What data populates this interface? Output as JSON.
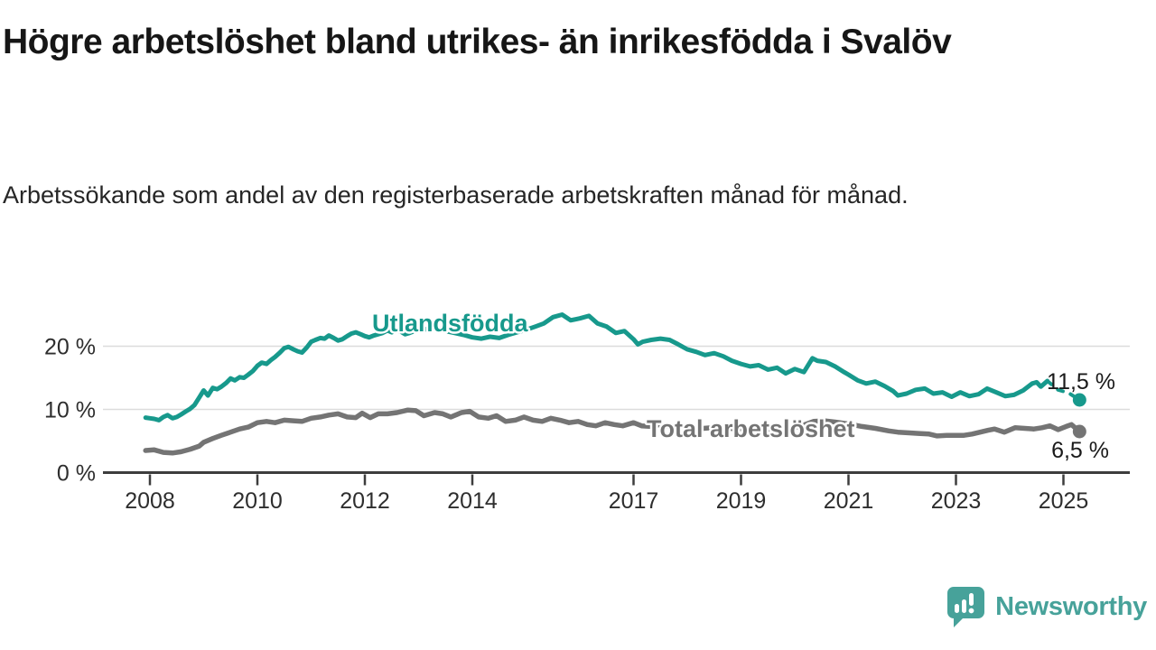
{
  "footer": {
    "brand": "Newsworthy"
  },
  "colors": {
    "teal": "#17998c",
    "gray": "#747474",
    "axis": "#3d3d3d",
    "grid": "#dcdcdc",
    "tick_text": "#2e2e2e",
    "value_text": "#1a1a1a",
    "logo": "#47a29a",
    "background": "#ffffff"
  },
  "chart_data": {
    "type": "line",
    "title": "Högre arbetslöshet bland utrikes- än inrikesfödda i Svalöv",
    "subtitle": "Arbetssökande som andel av den registerbaserade arbetskraften månad för månad.",
    "xlabel": "",
    "ylabel": "",
    "grid": "horizontal",
    "legend": "inline-labels",
    "xlim": [
      2007.1,
      2026.3
    ],
    "ylim": [
      0,
      28
    ],
    "x_ticks": [
      {
        "value": 2008,
        "label": "2008"
      },
      {
        "value": 2010,
        "label": "2010"
      },
      {
        "value": 2012,
        "label": "2012"
      },
      {
        "value": 2014,
        "label": "2014"
      },
      {
        "value": 2017,
        "label": "2017"
      },
      {
        "value": 2019,
        "label": "2019"
      },
      {
        "value": 2021,
        "label": "2021"
      },
      {
        "value": 2023,
        "label": "2023"
      },
      {
        "value": 2025,
        "label": "2025"
      }
    ],
    "y_ticks": [
      {
        "value": 0,
        "label": "0 %"
      },
      {
        "value": 10,
        "label": "10 %"
      },
      {
        "value": 20,
        "label": "20 %"
      }
    ],
    "series": [
      {
        "name": "Utlandsfödda",
        "color": "#17998c",
        "end_label": "11,5 %",
        "end_value": 11.5,
        "end_dot": [
          2025.3,
          11.5
        ],
        "dashed_tail": [
          [
            2024.7,
            14.5
          ],
          [
            2024.9,
            13.1
          ],
          [
            2025.1,
            12.6
          ],
          [
            2025.3,
            11.5
          ]
        ],
        "points": [
          [
            2007.92,
            8.7
          ],
          [
            2008.0,
            8.6
          ],
          [
            2008.08,
            8.5
          ],
          [
            2008.17,
            8.3
          ],
          [
            2008.25,
            8.8
          ],
          [
            2008.33,
            9.1
          ],
          [
            2008.42,
            8.6
          ],
          [
            2008.5,
            8.8
          ],
          [
            2008.58,
            9.2
          ],
          [
            2008.67,
            9.7
          ],
          [
            2008.75,
            10.1
          ],
          [
            2008.83,
            10.7
          ],
          [
            2008.92,
            11.9
          ],
          [
            2009.0,
            13.0
          ],
          [
            2009.08,
            12.2
          ],
          [
            2009.17,
            13.4
          ],
          [
            2009.25,
            13.2
          ],
          [
            2009.33,
            13.6
          ],
          [
            2009.42,
            14.2
          ],
          [
            2009.5,
            14.9
          ],
          [
            2009.58,
            14.6
          ],
          [
            2009.67,
            15.1
          ],
          [
            2009.75,
            15.0
          ],
          [
            2009.83,
            15.5
          ],
          [
            2009.92,
            16.1
          ],
          [
            2010.0,
            16.9
          ],
          [
            2010.08,
            17.4
          ],
          [
            2010.17,
            17.2
          ],
          [
            2010.25,
            17.8
          ],
          [
            2010.33,
            18.3
          ],
          [
            2010.42,
            19.0
          ],
          [
            2010.5,
            19.7
          ],
          [
            2010.58,
            19.9
          ],
          [
            2010.67,
            19.5
          ],
          [
            2010.75,
            19.2
          ],
          [
            2010.83,
            19.0
          ],
          [
            2010.92,
            19.8
          ],
          [
            2011.0,
            20.7
          ],
          [
            2011.08,
            21.0
          ],
          [
            2011.17,
            21.3
          ],
          [
            2011.25,
            21.2
          ],
          [
            2011.33,
            21.7
          ],
          [
            2011.42,
            21.3
          ],
          [
            2011.5,
            20.9
          ],
          [
            2011.58,
            21.1
          ],
          [
            2011.67,
            21.6
          ],
          [
            2011.75,
            22.0
          ],
          [
            2011.83,
            22.2
          ],
          [
            2011.92,
            21.9
          ],
          [
            2012.0,
            21.6
          ],
          [
            2012.08,
            21.4
          ],
          [
            2012.17,
            21.7
          ],
          [
            2012.25,
            21.9
          ],
          [
            2012.33,
            22.1
          ],
          [
            2012.42,
            22.5
          ],
          [
            2012.5,
            22.2
          ],
          [
            2012.58,
            22.6
          ],
          [
            2012.67,
            22.3
          ],
          [
            2012.75,
            21.9
          ],
          [
            2012.83,
            22.1
          ],
          [
            2012.92,
            22.4
          ],
          [
            2013.0,
            23.0
          ],
          [
            2013.17,
            22.6
          ],
          [
            2013.33,
            22.9
          ],
          [
            2013.5,
            22.4
          ],
          [
            2013.67,
            22.1
          ],
          [
            2013.83,
            21.8
          ],
          [
            2014.0,
            21.4
          ],
          [
            2014.17,
            21.2
          ],
          [
            2014.33,
            21.5
          ],
          [
            2014.5,
            21.3
          ],
          [
            2014.67,
            21.8
          ],
          [
            2014.83,
            22.2
          ],
          [
            2015.0,
            22.6
          ],
          [
            2015.17,
            23.1
          ],
          [
            2015.33,
            23.6
          ],
          [
            2015.5,
            24.6
          ],
          [
            2015.67,
            25.0
          ],
          [
            2015.83,
            24.1
          ],
          [
            2016.0,
            24.4
          ],
          [
            2016.17,
            24.8
          ],
          [
            2016.33,
            23.6
          ],
          [
            2016.5,
            23.1
          ],
          [
            2016.67,
            22.1
          ],
          [
            2016.83,
            22.4
          ],
          [
            2017.0,
            21.1
          ],
          [
            2017.08,
            20.3
          ],
          [
            2017.17,
            20.7
          ],
          [
            2017.33,
            21.0
          ],
          [
            2017.5,
            21.2
          ],
          [
            2017.67,
            21.0
          ],
          [
            2017.83,
            20.3
          ],
          [
            2018.0,
            19.5
          ],
          [
            2018.17,
            19.1
          ],
          [
            2018.33,
            18.6
          ],
          [
            2018.5,
            18.9
          ],
          [
            2018.67,
            18.4
          ],
          [
            2018.83,
            17.7
          ],
          [
            2019.0,
            17.2
          ],
          [
            2019.17,
            16.8
          ],
          [
            2019.33,
            17.0
          ],
          [
            2019.5,
            16.3
          ],
          [
            2019.67,
            16.6
          ],
          [
            2019.83,
            15.7
          ],
          [
            2020.0,
            16.4
          ],
          [
            2020.17,
            15.9
          ],
          [
            2020.33,
            18.1
          ],
          [
            2020.42,
            17.7
          ],
          [
            2020.58,
            17.5
          ],
          [
            2020.75,
            16.8
          ],
          [
            2020.92,
            15.9
          ],
          [
            2021.0,
            15.5
          ],
          [
            2021.17,
            14.6
          ],
          [
            2021.33,
            14.1
          ],
          [
            2021.5,
            14.4
          ],
          [
            2021.67,
            13.7
          ],
          [
            2021.83,
            12.9
          ],
          [
            2021.92,
            12.2
          ],
          [
            2022.08,
            12.5
          ],
          [
            2022.25,
            13.1
          ],
          [
            2022.42,
            13.3
          ],
          [
            2022.58,
            12.5
          ],
          [
            2022.75,
            12.7
          ],
          [
            2022.92,
            12.0
          ],
          [
            2023.08,
            12.7
          ],
          [
            2023.25,
            12.1
          ],
          [
            2023.42,
            12.4
          ],
          [
            2023.58,
            13.3
          ],
          [
            2023.75,
            12.7
          ],
          [
            2023.92,
            12.1
          ],
          [
            2024.08,
            12.3
          ],
          [
            2024.25,
            13.0
          ],
          [
            2024.42,
            14.1
          ],
          [
            2024.5,
            14.3
          ],
          [
            2024.58,
            13.6
          ],
          [
            2024.7,
            14.5
          ]
        ]
      },
      {
        "name": "Total arbetslöshet",
        "color": "#747474",
        "end_label": "6,5 %",
        "end_value": 6.5,
        "end_dot": [
          2025.3,
          6.5
        ],
        "dashed_tail": null,
        "points": [
          [
            2007.92,
            3.5
          ],
          [
            2008.08,
            3.6
          ],
          [
            2008.25,
            3.2
          ],
          [
            2008.42,
            3.1
          ],
          [
            2008.58,
            3.3
          ],
          [
            2008.75,
            3.7
          ],
          [
            2008.92,
            4.2
          ],
          [
            2009.0,
            4.8
          ],
          [
            2009.17,
            5.4
          ],
          [
            2009.33,
            5.9
          ],
          [
            2009.5,
            6.4
          ],
          [
            2009.67,
            6.9
          ],
          [
            2009.83,
            7.2
          ],
          [
            2010.0,
            7.9
          ],
          [
            2010.17,
            8.1
          ],
          [
            2010.33,
            7.9
          ],
          [
            2010.5,
            8.3
          ],
          [
            2010.67,
            8.2
          ],
          [
            2010.83,
            8.1
          ],
          [
            2011.0,
            8.6
          ],
          [
            2011.17,
            8.8
          ],
          [
            2011.33,
            9.1
          ],
          [
            2011.5,
            9.3
          ],
          [
            2011.67,
            8.8
          ],
          [
            2011.83,
            8.7
          ],
          [
            2011.95,
            9.4
          ],
          [
            2012.1,
            8.7
          ],
          [
            2012.25,
            9.3
          ],
          [
            2012.42,
            9.3
          ],
          [
            2012.6,
            9.5
          ],
          [
            2012.8,
            9.9
          ],
          [
            2012.95,
            9.8
          ],
          [
            2013.1,
            9.0
          ],
          [
            2013.3,
            9.5
          ],
          [
            2013.45,
            9.3
          ],
          [
            2013.6,
            8.8
          ],
          [
            2013.8,
            9.5
          ],
          [
            2013.95,
            9.7
          ],
          [
            2014.12,
            8.8
          ],
          [
            2014.3,
            8.6
          ],
          [
            2014.45,
            9.0
          ],
          [
            2014.62,
            8.1
          ],
          [
            2014.8,
            8.3
          ],
          [
            2014.96,
            8.8
          ],
          [
            2015.13,
            8.3
          ],
          [
            2015.3,
            8.1
          ],
          [
            2015.46,
            8.6
          ],
          [
            2015.63,
            8.3
          ],
          [
            2015.8,
            7.9
          ],
          [
            2015.97,
            8.1
          ],
          [
            2016.14,
            7.6
          ],
          [
            2016.3,
            7.4
          ],
          [
            2016.47,
            7.9
          ],
          [
            2016.64,
            7.6
          ],
          [
            2016.8,
            7.4
          ],
          [
            2017.0,
            7.9
          ],
          [
            2017.15,
            7.4
          ],
          [
            2017.33,
            7.3
          ],
          [
            2017.5,
            7.6
          ],
          [
            2017.7,
            7.2
          ],
          [
            2018.0,
            7.3
          ],
          [
            2018.3,
            7.0
          ],
          [
            2018.6,
            7.2
          ],
          [
            2018.9,
            6.9
          ],
          [
            2019.2,
            7.1
          ],
          [
            2019.5,
            6.9
          ],
          [
            2019.8,
            7.0
          ],
          [
            2020.1,
            7.3
          ],
          [
            2020.35,
            8.1
          ],
          [
            2020.55,
            8.2
          ],
          [
            2020.75,
            8.0
          ],
          [
            2021.0,
            7.7
          ],
          [
            2021.25,
            7.3
          ],
          [
            2021.5,
            7.0
          ],
          [
            2021.75,
            6.6
          ],
          [
            2021.92,
            6.4
          ],
          [
            2022.1,
            6.3
          ],
          [
            2022.3,
            6.2
          ],
          [
            2022.5,
            6.1
          ],
          [
            2022.65,
            5.8
          ],
          [
            2022.83,
            5.9
          ],
          [
            2023.0,
            5.9
          ],
          [
            2023.15,
            5.9
          ],
          [
            2023.3,
            6.1
          ],
          [
            2023.45,
            6.4
          ],
          [
            2023.6,
            6.7
          ],
          [
            2023.72,
            6.9
          ],
          [
            2023.9,
            6.4
          ],
          [
            2024.1,
            7.1
          ],
          [
            2024.28,
            7.0
          ],
          [
            2024.45,
            6.9
          ],
          [
            2024.6,
            7.1
          ],
          [
            2024.75,
            7.4
          ],
          [
            2024.9,
            6.8
          ],
          [
            2025.05,
            7.3
          ],
          [
            2025.15,
            7.6
          ],
          [
            2025.3,
            6.5
          ]
        ]
      }
    ]
  }
}
